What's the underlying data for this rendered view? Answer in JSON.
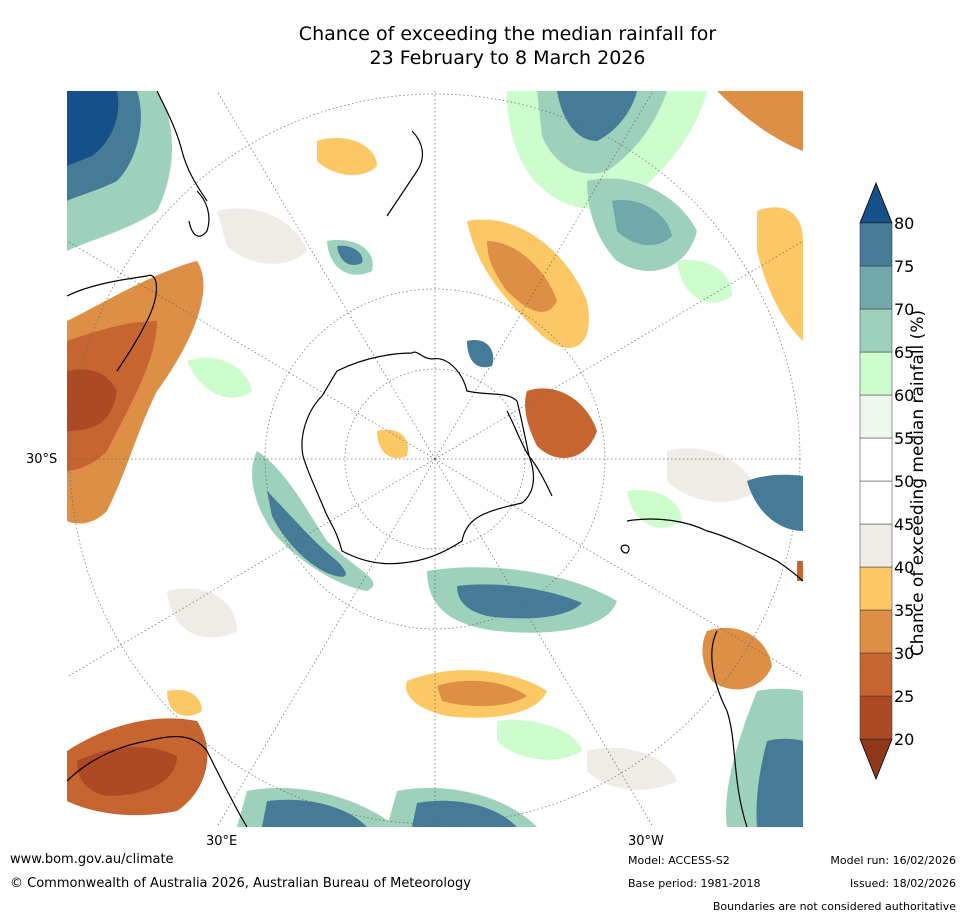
{
  "title_line1": "Chance of exceeding the median rainfall for",
  "title_line2": "23 February to 8 March 2026",
  "lat_label": "30°S",
  "lon_label_east": "30°E",
  "lon_label_west": "30°W",
  "colorbar": {
    "title": "Chance of exceeding median rainfall (%)",
    "levels": [
      20,
      25,
      30,
      35,
      40,
      45,
      50,
      55,
      60,
      65,
      70,
      75,
      80
    ],
    "colors": [
      "#8e3a1a",
      "#ad4a25",
      "#c76530",
      "#dd8f45",
      "#fcc865",
      "#efebe6",
      "#ffffff",
      "#ffffff",
      "#eef7ec",
      "#cdfccd",
      "#9ed1bb",
      "#70a8ac",
      "#457b97",
      "#174f8a"
    ]
  },
  "footer": {
    "url": "www.bom.gov.au/climate",
    "copyright": "© Commonwealth of Australia 2026, Australian Bureau of Meteorology",
    "model": "Model: ACCESS-S2",
    "base_period": "Base period: 1981-2018",
    "model_run": "Model run: 16/02/2026",
    "issued": "Issued: 18/02/2026",
    "disclaimer": "Boundaries are not considered authoritative"
  }
}
